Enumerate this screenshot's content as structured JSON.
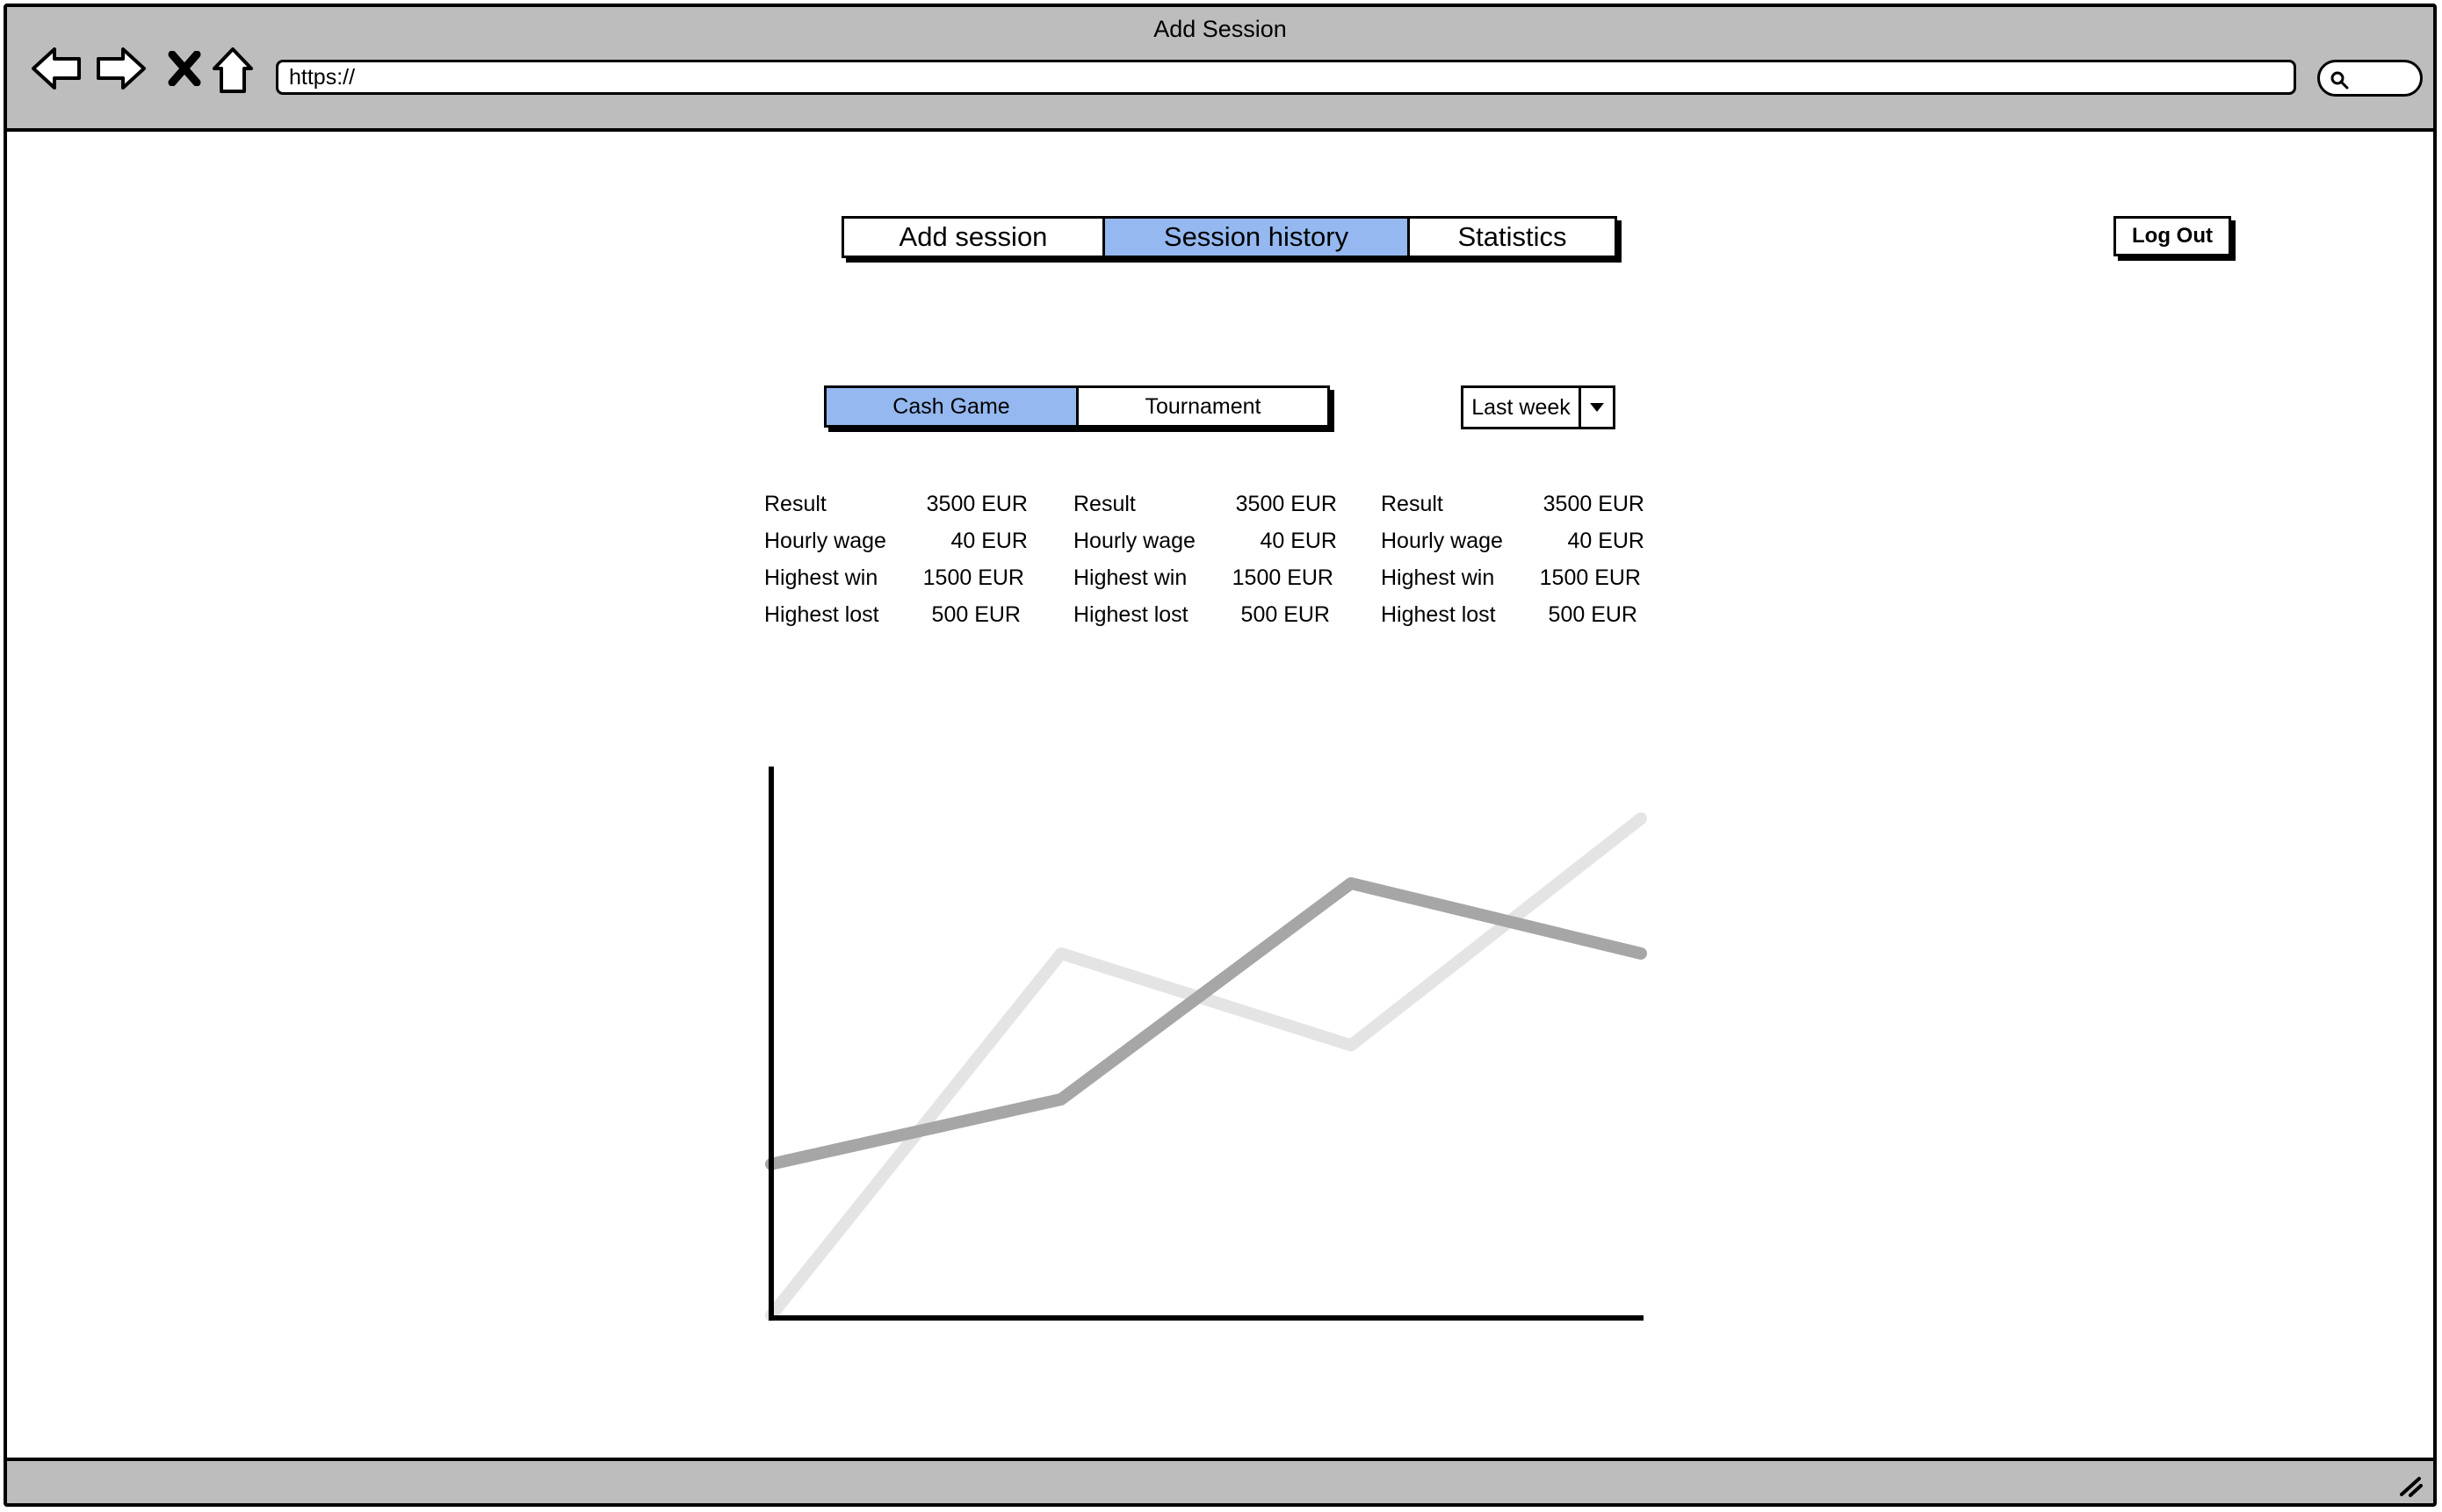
{
  "window": {
    "title": "Add Session",
    "url": "https://"
  },
  "nav": {
    "tabs": [
      {
        "label": "Add session",
        "active": false
      },
      {
        "label": "Session history",
        "active": true
      },
      {
        "label": "Statistics",
        "active": false
      }
    ],
    "logout_label": "Log Out"
  },
  "filters": {
    "game_types": [
      {
        "label": "Cash Game",
        "active": true
      },
      {
        "label": "Tournament",
        "active": false
      }
    ],
    "period": "Last week"
  },
  "stats": [
    [
      {
        "label": "Result",
        "value": "3500 EUR"
      },
      {
        "label": "Hourly wage",
        "value": "40 EUR"
      },
      {
        "label": "Highest win",
        "value": "1500 EUR"
      },
      {
        "label": "Highest lost",
        "value": "500 EUR"
      }
    ],
    [
      {
        "label": "Result",
        "value": "3500 EUR"
      },
      {
        "label": "Hourly wage",
        "value": "40 EUR"
      },
      {
        "label": "Highest win",
        "value": "1500 EUR"
      },
      {
        "label": "Highest lost",
        "value": "500 EUR"
      }
    ],
    [
      {
        "label": "Result",
        "value": "3500 EUR"
      },
      {
        "label": "Hourly wage",
        "value": "40 EUR"
      },
      {
        "label": "Highest win",
        "value": "1500 EUR"
      },
      {
        "label": "Highest lost",
        "value": "500 EUR"
      }
    ]
  ],
  "colors": {
    "accent": "#94b8ef",
    "chrome": "#bdbdbd",
    "series_dark": "#a6a6a6",
    "series_light": "#e4e4e4"
  },
  "icons": [
    "back-arrow-icon",
    "forward-arrow-icon",
    "close-icon",
    "home-icon",
    "search-icon",
    "resize-grip-icon"
  ],
  "chart_data": {
    "type": "line",
    "x": [
      0,
      1,
      2,
      3
    ],
    "series": [
      {
        "values": [
          0.0,
          0.67,
          0.5,
          0.92
        ],
        "color": "#e4e4e4"
      },
      {
        "values": [
          0.28,
          0.4,
          0.8,
          0.67
        ],
        "color": "#a6a6a6"
      }
    ],
    "xlim": [
      0,
      3
    ],
    "ylim": [
      0,
      1
    ],
    "grid": false,
    "legend": "none"
  }
}
